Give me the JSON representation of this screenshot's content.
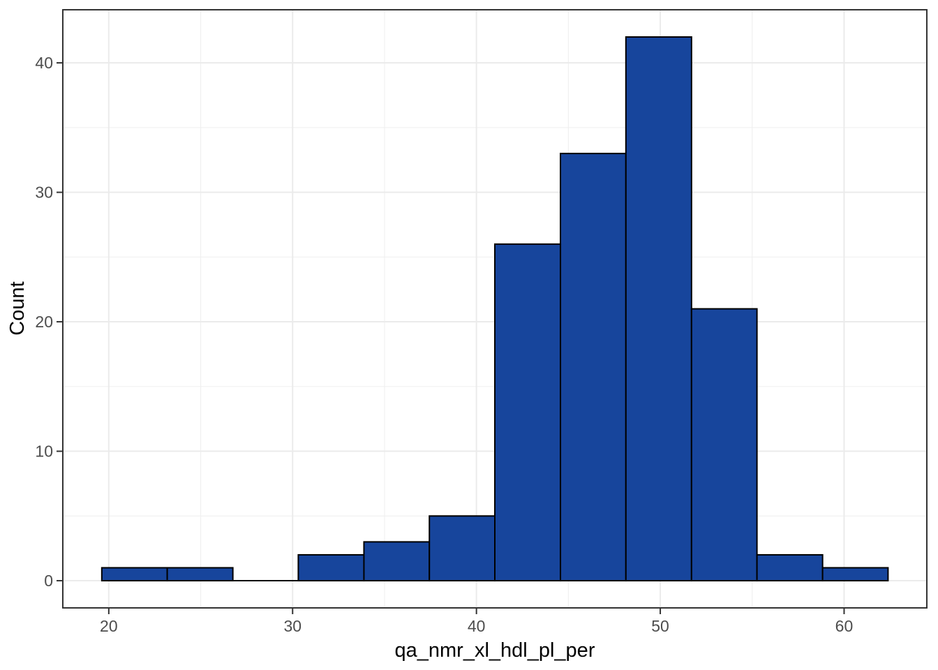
{
  "figure": {
    "background": "#ffffff"
  },
  "chart_data": {
    "type": "bar",
    "subtype": "histogram",
    "xlabel": "qa_nmr_xl_hdl_pl_per",
    "ylabel": "Count",
    "bin_edges": [
      19.62,
      23.18,
      26.75,
      30.31,
      33.88,
      37.44,
      41.0,
      44.57,
      48.13,
      51.7,
      55.26,
      58.83,
      62.39
    ],
    "counts": [
      1,
      1,
      0,
      2,
      3,
      5,
      26,
      33,
      42,
      21,
      2,
      1
    ],
    "x_ticks": [
      20,
      30,
      40,
      50,
      60
    ],
    "x_minor_ticks": [
      25,
      35,
      45,
      55
    ],
    "y_ticks": [
      0,
      10,
      20,
      30,
      40
    ],
    "y_minor_ticks": [
      5,
      15,
      25,
      35
    ],
    "xlim": [
      17.5,
      64.5
    ],
    "ylim": [
      -2.1,
      44.1
    ],
    "grid": "on",
    "legend": "none",
    "colors": {
      "bar_fill": "#17459c",
      "bar_stroke": "#000000",
      "grid_major": "#ebebeb",
      "grid_minor": "#f0f0f0",
      "panel_border": "#333333",
      "tick_mark": "#333333",
      "tick_label": "#4d4d4d",
      "axis_title": "#000000",
      "background": "#ffffff"
    }
  }
}
